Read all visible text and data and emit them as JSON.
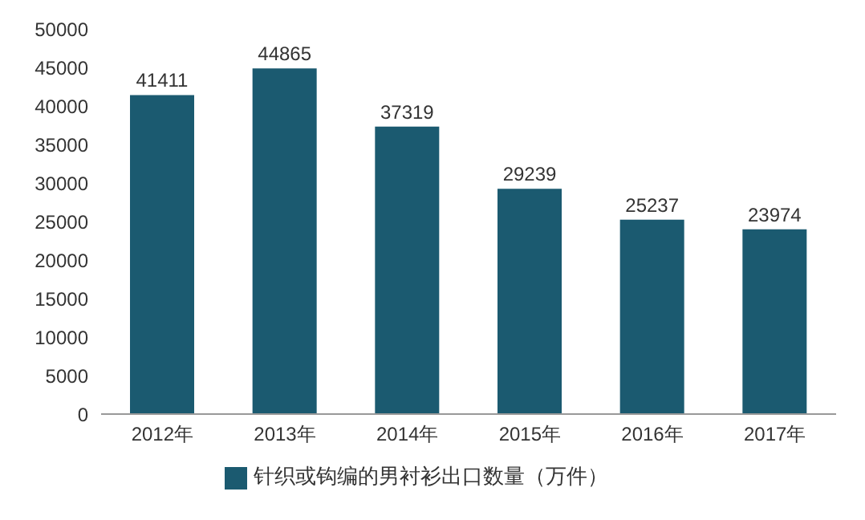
{
  "chart_data": {
    "type": "bar",
    "categories": [
      "2012年",
      "2013年",
      "2014年",
      "2015年",
      "2016年",
      "2017年"
    ],
    "series": [
      {
        "name": "针织或钩编的男衬衫出口数量（万件）",
        "color": "#1b5a70",
        "values": [
          41411,
          44865,
          37319,
          29239,
          25237,
          23974
        ]
      }
    ],
    "ylim": [
      0,
      50000
    ],
    "yticks": [
      0,
      5000,
      10000,
      15000,
      20000,
      25000,
      30000,
      35000,
      40000,
      45000,
      50000
    ],
    "data_labels": true,
    "legend": "bottom",
    "grid": false
  }
}
